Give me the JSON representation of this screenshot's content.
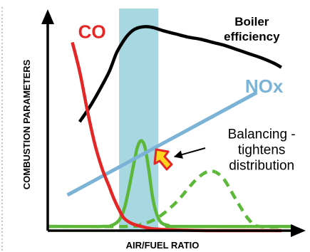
{
  "chart_data": {
    "type": "line",
    "xlabel": "AIR/FUEL RATIO",
    "ylabel": "COMBUSTION PARAMETERS",
    "xlim": [
      0,
      100
    ],
    "ylim": [
      0,
      100
    ],
    "grid": false,
    "optimal_band": {
      "x": [
        29,
        45
      ],
      "color": "#a7d8e2"
    },
    "series": [
      {
        "name": "CO",
        "color": "#e52626",
        "style": "solid",
        "x": [
          10,
          13,
          16,
          19,
          22,
          25,
          27,
          29,
          31,
          34,
          38,
          42,
          48,
          56,
          65,
          75,
          85,
          95
        ],
        "y": [
          90,
          76,
          58,
          42,
          30,
          21,
          15,
          10,
          6,
          3.5,
          2,
          1,
          0.5,
          0.2,
          0,
          0,
          0,
          0
        ]
      },
      {
        "name": "Boiler efficiency",
        "color": "#000000",
        "style": "solid",
        "x": [
          13,
          17,
          21,
          25,
          28,
          31,
          33,
          35,
          37,
          40,
          43,
          47,
          52,
          57,
          62,
          67,
          72,
          77,
          82,
          87,
          92,
          95
        ],
        "y": [
          52,
          59,
          67,
          76,
          85,
          91,
          94,
          96,
          97,
          97.5,
          97,
          95.5,
          94,
          92.5,
          91.5,
          90,
          88.5,
          86.5,
          84.5,
          82.5,
          80,
          78
        ]
      },
      {
        "name": "NOx",
        "color": "#7ab3d6",
        "style": "solid",
        "x": [
          8,
          85
        ],
        "y": [
          17,
          66
        ]
      },
      {
        "name": "",
        "color": "#5db83a",
        "style": "solid",
        "x": [
          0,
          22,
          26,
          29,
          31,
          33,
          35,
          36.5,
          38,
          39.5,
          41,
          42.5,
          44,
          46,
          49,
          53,
          100
        ],
        "y": [
          2,
          2,
          2.5,
          5,
          10,
          20,
          32,
          40,
          43,
          40,
          30,
          17,
          9,
          4,
          2.5,
          2,
          2
        ]
      },
      {
        "name": "",
        "color": "#5db83a",
        "style": "dashed",
        "x": [
          0,
          33,
          38,
          43,
          48,
          53,
          57,
          60,
          63,
          66,
          69,
          72,
          75,
          78,
          82,
          86,
          100
        ],
        "y": [
          2,
          2,
          3,
          5,
          9,
          14.5,
          20,
          24,
          27,
          28.5,
          27.5,
          24,
          18,
          12,
          5,
          2,
          2
        ]
      }
    ],
    "labels": [
      {
        "text": "CO",
        "color": "#e52626",
        "x": 18,
        "y": 92
      },
      {
        "text": "NOx",
        "color": "#7ab3d6",
        "x": 88,
        "y": 66
      },
      {
        "lines": [
          "Boiler",
          "efficiency"
        ],
        "color": "#000000",
        "x": 83,
        "y": 98
      },
      {
        "lines": [
          "Balancing -",
          "tightens",
          "distribution"
        ],
        "color": "#000000",
        "x": 87,
        "y": 44
      }
    ],
    "shift_arrow": {
      "fill": "#ffd41c",
      "stroke": "#e52626"
    }
  }
}
